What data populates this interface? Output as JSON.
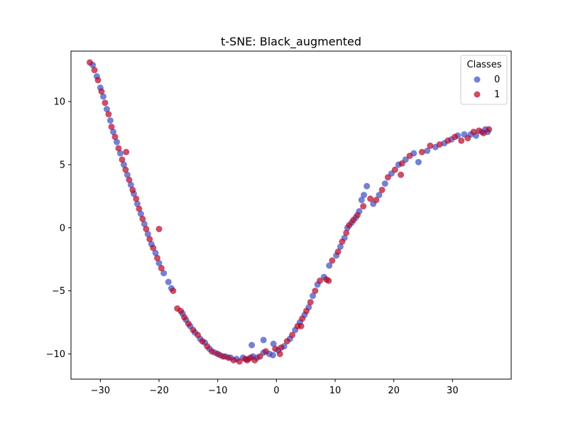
{
  "chart_data": {
    "type": "scatter",
    "title": "t-SNE: Black_augmented",
    "xlabel": "",
    "ylabel": "",
    "xlim": [
      -35,
      40
    ],
    "ylim": [
      -12,
      14
    ],
    "xticks": [
      -30,
      -20,
      -10,
      0,
      10,
      20,
      30
    ],
    "yticks": [
      -10,
      -5,
      0,
      5,
      10
    ],
    "grid": false,
    "legend": {
      "title": "Classes",
      "placement": "top-right"
    },
    "series": [
      {
        "name": "0",
        "color": "#3b4cc0",
        "alpha": 0.7,
        "points": [
          [
            -31.3,
            12.9
          ],
          [
            -30.6,
            12.0
          ],
          [
            -30.0,
            11.1
          ],
          [
            -29.5,
            10.4
          ],
          [
            -28.9,
            9.4
          ],
          [
            -28.3,
            8.5
          ],
          [
            -27.8,
            7.6
          ],
          [
            -27.2,
            6.8
          ],
          [
            -26.6,
            5.9
          ],
          [
            -26.0,
            5.0
          ],
          [
            -25.4,
            4.2
          ],
          [
            -24.8,
            3.4
          ],
          [
            -24.3,
            2.7
          ],
          [
            -23.7,
            1.9
          ],
          [
            -23.1,
            1.1
          ],
          [
            -22.5,
            0.3
          ],
          [
            -21.9,
            -0.5
          ],
          [
            -21.3,
            -1.3
          ],
          [
            -20.6,
            -2.0
          ],
          [
            -20.0,
            -2.8
          ],
          [
            -19.2,
            -3.6
          ],
          [
            -18.4,
            -4.3
          ],
          [
            -17.9,
            -4.8
          ],
          [
            -16.0,
            -6.8
          ],
          [
            -15.4,
            -7.3
          ],
          [
            -14.7,
            -7.8
          ],
          [
            -13.9,
            -8.3
          ],
          [
            -13.0,
            -8.8
          ],
          [
            -12.2,
            -9.1
          ],
          [
            -11.4,
            -9.6
          ],
          [
            -10.5,
            -9.9
          ],
          [
            -9.6,
            -10.1
          ],
          [
            -8.7,
            -10.2
          ],
          [
            -7.8,
            -10.3
          ],
          [
            -6.8,
            -10.4
          ],
          [
            -5.7,
            -10.3
          ],
          [
            -4.8,
            -10.4
          ],
          [
            -4.0,
            -10.2
          ],
          [
            -3.3,
            -10.3
          ],
          [
            -2.2,
            -9.9
          ],
          [
            -1.2,
            -10.0
          ],
          [
            -0.6,
            -10.1
          ],
          [
            0.3,
            -9.7
          ],
          [
            1.3,
            -9.4
          ],
          [
            2.3,
            -8.8
          ],
          [
            3.2,
            -8.1
          ],
          [
            4.0,
            -7.5
          ],
          [
            4.8,
            -6.9
          ],
          [
            5.5,
            -6.3
          ],
          [
            6.2,
            -5.4
          ],
          [
            7.0,
            -4.5
          ],
          [
            8.1,
            -3.9
          ],
          [
            9.0,
            -3.0
          ],
          [
            10.2,
            -2.2
          ],
          [
            10.9,
            -1.5
          ],
          [
            11.6,
            -0.8
          ],
          [
            12.1,
            0.0
          ],
          [
            12.8,
            0.4
          ],
          [
            13.5,
            0.8
          ],
          [
            14.1,
            1.3
          ],
          [
            14.5,
            2.2
          ],
          [
            14.9,
            2.6
          ],
          [
            15.4,
            3.3
          ],
          [
            16.5,
            1.9
          ],
          [
            17.5,
            2.6
          ],
          [
            18.5,
            3.5
          ],
          [
            19.6,
            4.3
          ],
          [
            20.8,
            5.0
          ],
          [
            22.0,
            5.4
          ],
          [
            23.4,
            5.9
          ],
          [
            24.2,
            5.2
          ],
          [
            25.7,
            6.1
          ],
          [
            27.1,
            6.4
          ],
          [
            28.6,
            6.7
          ],
          [
            29.8,
            7.0
          ],
          [
            30.9,
            7.3
          ],
          [
            32.0,
            7.4
          ],
          [
            33.1,
            7.4
          ],
          [
            34.0,
            7.3
          ],
          [
            35.0,
            7.6
          ],
          [
            35.6,
            7.8
          ],
          [
            36.0,
            7.6
          ],
          [
            -4.2,
            -9.3
          ],
          [
            -2.2,
            -8.9
          ],
          [
            -0.5,
            -9.2
          ]
        ]
      },
      {
        "name": "1",
        "color": "#b40426",
        "alpha": 0.7,
        "points": [
          [
            -31.8,
            13.1
          ],
          [
            -31.0,
            12.5
          ],
          [
            -30.4,
            11.7
          ],
          [
            -29.8,
            10.8
          ],
          [
            -29.2,
            9.9
          ],
          [
            -28.6,
            9.0
          ],
          [
            -28.1,
            8.0
          ],
          [
            -27.5,
            7.2
          ],
          [
            -26.9,
            6.3
          ],
          [
            -26.3,
            5.4
          ],
          [
            -25.7,
            4.6
          ],
          [
            -25.1,
            3.8
          ],
          [
            -24.5,
            3.0
          ],
          [
            -23.9,
            2.3
          ],
          [
            -23.4,
            1.5
          ],
          [
            -22.8,
            0.7
          ],
          [
            -22.2,
            -0.1
          ],
          [
            -21.6,
            -0.9
          ],
          [
            -21.0,
            -1.6
          ],
          [
            -20.3,
            -2.4
          ],
          [
            -19.6,
            -3.2
          ],
          [
            -17.6,
            -5.0
          ],
          [
            -16.3,
            -6.6
          ],
          [
            -15.7,
            -7.1
          ],
          [
            -15.0,
            -7.6
          ],
          [
            -14.2,
            -8.1
          ],
          [
            -13.4,
            -8.5
          ],
          [
            -12.6,
            -9.0
          ],
          [
            -11.8,
            -9.4
          ],
          [
            -11.0,
            -9.8
          ],
          [
            -10.0,
            -10.0
          ],
          [
            -9.1,
            -10.2
          ],
          [
            -8.2,
            -10.3
          ],
          [
            -7.3,
            -10.5
          ],
          [
            -6.3,
            -10.6
          ],
          [
            -5.3,
            -10.4
          ],
          [
            -4.4,
            -10.3
          ],
          [
            -3.7,
            -10.5
          ],
          [
            -2.8,
            -10.2
          ],
          [
            -1.8,
            -9.8
          ],
          [
            -0.2,
            -9.6
          ],
          [
            0.8,
            -9.5
          ],
          [
            1.8,
            -9.0
          ],
          [
            2.7,
            -8.5
          ],
          [
            3.6,
            -7.8
          ],
          [
            4.4,
            -7.2
          ],
          [
            5.1,
            -6.6
          ],
          [
            5.8,
            -5.9
          ],
          [
            6.6,
            -5.0
          ],
          [
            7.4,
            -4.2
          ],
          [
            8.5,
            -4.1
          ],
          [
            9.5,
            -2.6
          ],
          [
            10.5,
            -1.9
          ],
          [
            11.2,
            -1.1
          ],
          [
            11.9,
            -0.4
          ],
          [
            12.4,
            0.2
          ],
          [
            13.1,
            0.6
          ],
          [
            13.8,
            1.0
          ],
          [
            14.8,
            1.7
          ],
          [
            16.0,
            2.3
          ],
          [
            17.0,
            2.2
          ],
          [
            18.0,
            3.0
          ],
          [
            19.0,
            4.0
          ],
          [
            20.2,
            4.6
          ],
          [
            21.4,
            5.1
          ],
          [
            22.7,
            5.7
          ],
          [
            24.8,
            6.0
          ],
          [
            26.2,
            6.5
          ],
          [
            27.8,
            6.6
          ],
          [
            29.2,
            6.9
          ],
          [
            30.4,
            7.2
          ],
          [
            31.5,
            6.9
          ],
          [
            32.6,
            7.1
          ],
          [
            33.6,
            7.6
          ],
          [
            34.5,
            7.7
          ],
          [
            35.3,
            7.5
          ],
          [
            36.2,
            7.8
          ],
          [
            -25.6,
            6.0
          ],
          [
            -20.0,
            -0.1
          ],
          [
            -16.9,
            -6.4
          ],
          [
            -5.0,
            -10.5
          ],
          [
            0.6,
            -10.0
          ],
          [
            4.2,
            -7.8
          ],
          [
            8.9,
            -4.2
          ],
          [
            21.2,
            4.2
          ]
        ]
      }
    ]
  }
}
